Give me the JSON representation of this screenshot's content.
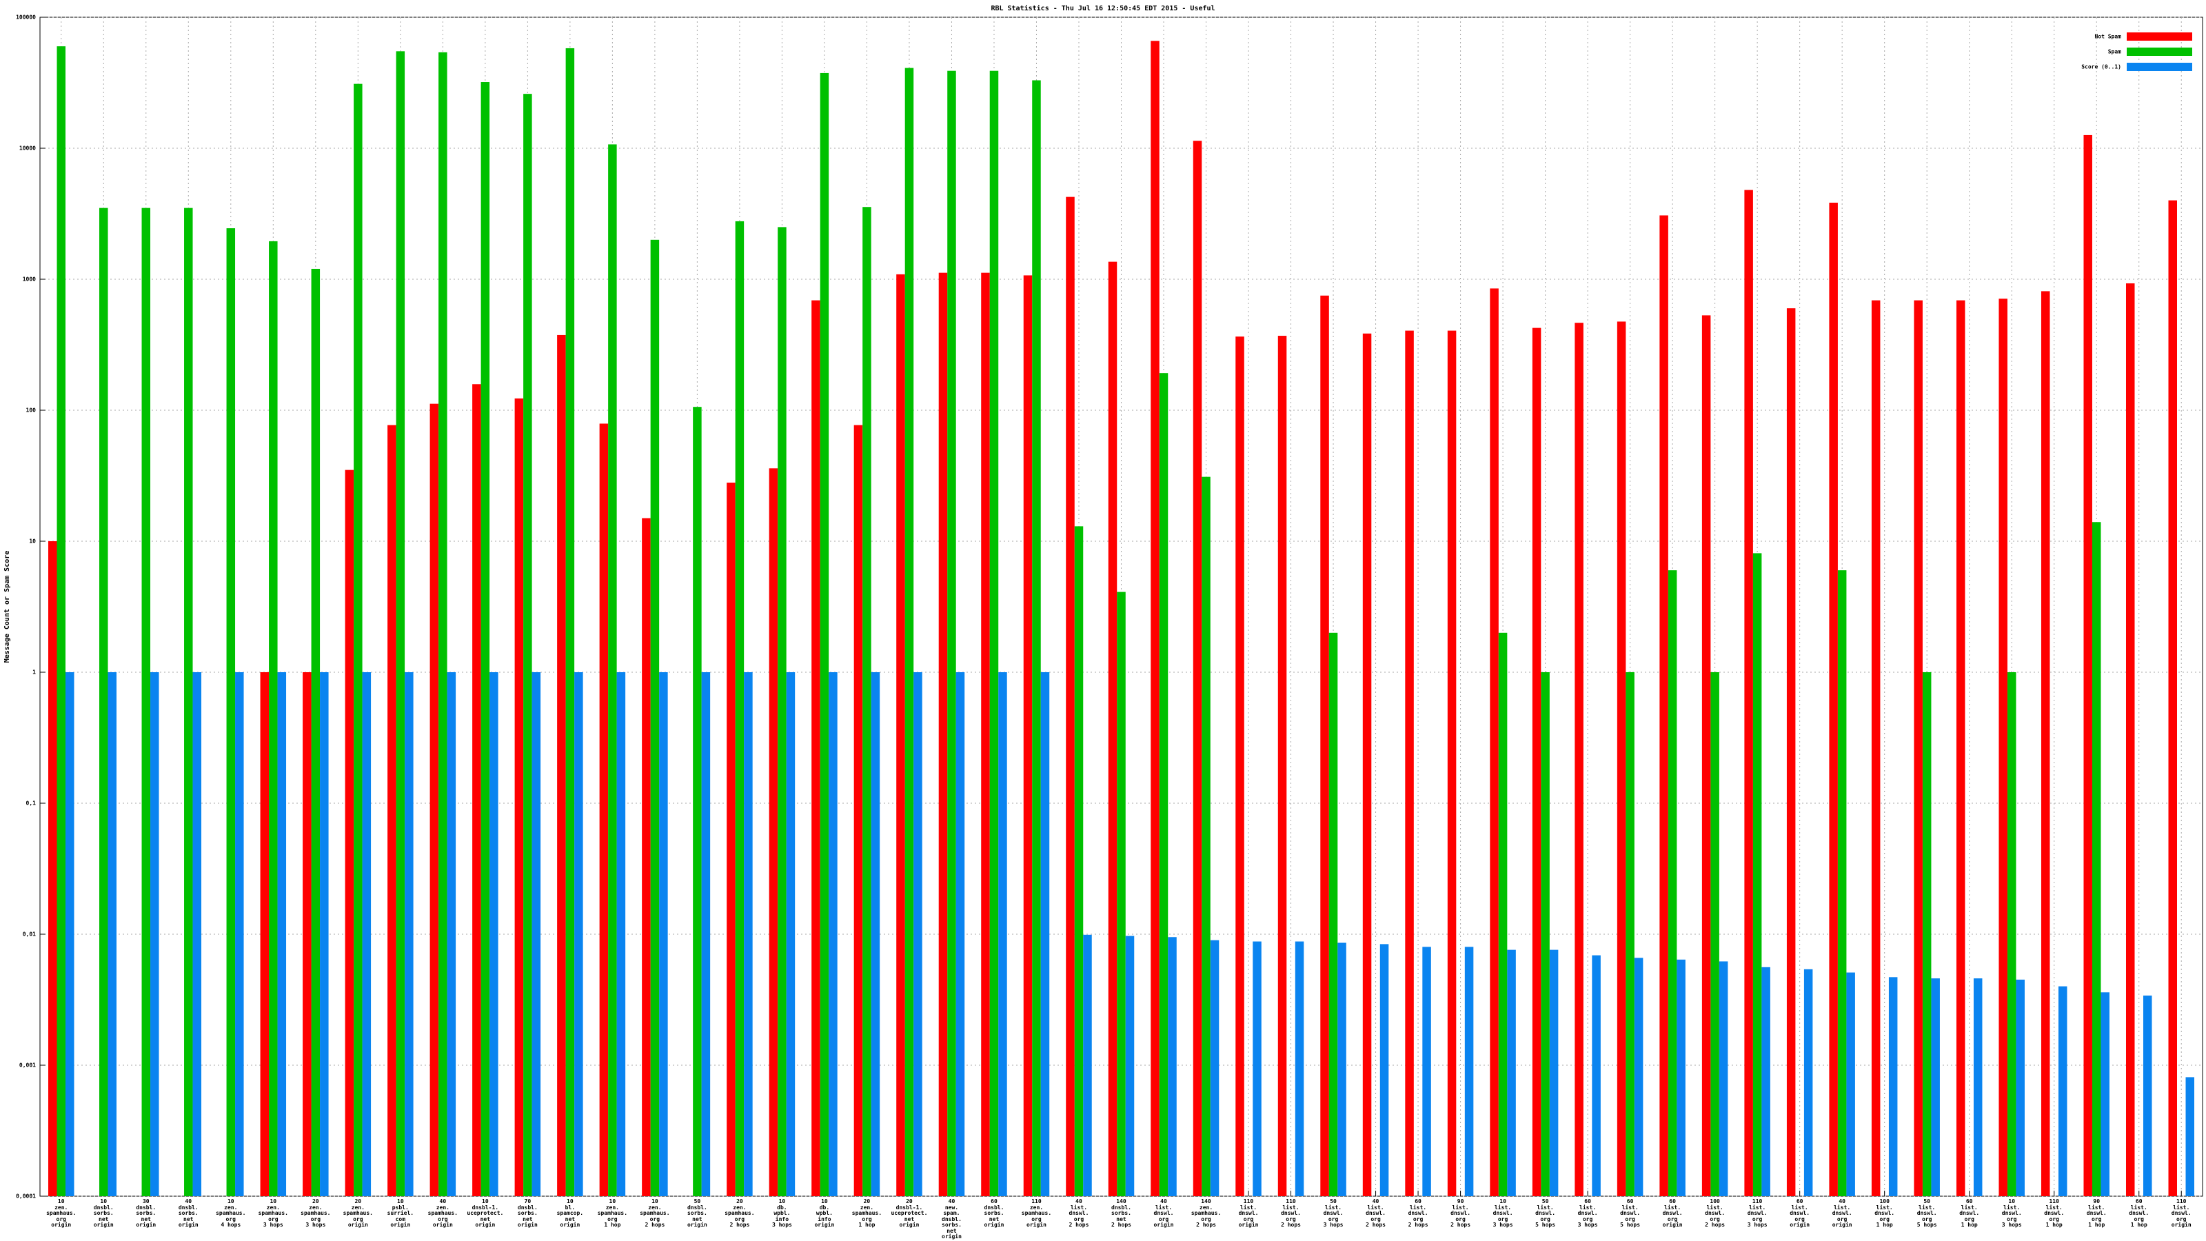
{
  "chart_data": {
    "type": "bar",
    "title": "RBL Statistics - Thu Jul 16 12:50:45 EDT 2015 - Useful",
    "y_label": "Message Count or Spam Score",
    "log_scale": true,
    "grid": true,
    "legend_position": "top-right",
    "ylim": [
      0.0001,
      100000
    ],
    "yticks": [
      {
        "value": 0.0001,
        "label": "0,0001"
      },
      {
        "value": 0.001,
        "label": "0,001"
      },
      {
        "value": 0.01,
        "label": "0,01"
      },
      {
        "value": 0.1,
        "label": "0,1"
      },
      1,
      10,
      100,
      1000,
      10000,
      100000
    ],
    "categories": [
      "10\nzen.\nspamhaus.\norg\norigin",
      "10\ndnsbl.\nsorbs.\nnet\norigin",
      "30\ndnsbl.\nsorbs.\nnet\norigin",
      "40\ndnsbl.\nsorbs.\nnet\norigin",
      "10\nzen.\nspamhaus.\norg\n4 hops",
      "10\nzen.\nspamhaus.\norg\n3 hops",
      "20\nzen.\nspamhaus.\norg\n3 hops",
      "20\nzen.\nspamhaus.\norg\norigin",
      "10\npsbl.\nsurriel.\ncom\norigin",
      "40\nzen.\nspamhaus.\norg\norigin",
      "10\ndnsbl-1.\nuceprotect.\nnet\norigin",
      "70\ndnsbl.\nsorbs.\nnet\norigin",
      "10\nbl.\nspamcop.\nnet\norigin",
      "10\nzen.\nspamhaus.\norg\n1 hop",
      "10\nzen.\nspamhaus.\norg\n2 hops",
      "50\ndnsbl.\nsorbs.\nnet\norigin",
      "20\nzen.\nspamhaus.\norg\n2 hops",
      "10\ndb.\nwpbl.\ninfo\n3 hops",
      "10\ndb.\nwpbl.\ninfo\norigin",
      "20\nzen.\nspamhaus.\norg\n1 hop",
      "20\ndnsbl-1.\nuceprotect.\nnet\norigin",
      "40\nnew.\nspam.\ndnsbl.\nsorbs.\nnet\norigin",
      "60\ndnsbl.\nsorbs.\nnet\norigin",
      "110\nzen.\nspamhaus.\norg\norigin",
      "40\nlist.\ndnswl.\norg\n2 hops",
      "140\ndnsbl.\nsorbs.\nnet\n2 hops",
      "40\nlist.\ndnswl.\norg\norigin",
      "140\nzen.\nspamhaus.\norg\n2 hops",
      "110\nlist.\ndnswl.\norg\norigin",
      "110\nlist.\ndnswl.\norg\n2 hops",
      "50\nlist.\ndnswl.\norg\n3 hops",
      "40\nlist.\ndnswl.\norg\n2 hops",
      "60\nlist.\ndnswl.\norg\n2 hops",
      "90\nlist.\ndnswl.\norg\n2 hops",
      "10\nlist.\ndnswl.\norg\n3 hops",
      "50\nlist.\ndnswl.\norg\n5 hops",
      "60\nlist.\ndnswl.\norg\n3 hops",
      "60\nlist.\ndnswl.\norg\n5 hops",
      "60\nlist.\ndnswl.\norg\norigin",
      "100\nlist.\ndnswl.\norg\n2 hops",
      "110\nlist.\ndnswl.\norg\n3 hops",
      "60\nlist.\ndnswl.\norg\norigin",
      "40\nlist.\ndnswl.\norg\norigin",
      "100\nlist.\ndnswl.\norg\n1 hop",
      "50\nlist.\ndnswl.\norg\n5 hops",
      "60\nlist.\ndnswl.\norg\n1 hop",
      "10\nlist.\ndnswl.\norg\n3 hops",
      "110\nlist.\ndnswl.\norg\n1 hop",
      "90\nlist.\ndnswl.\norg\n1 hop",
      "60\nlist.\ndnswl.\norg\n1 hop",
      "110\nlist.\ndnswl.\norg\norigin"
    ],
    "series": [
      {
        "name": "Not Spam",
        "color": "#ff0000",
        "values": [
          10,
          null,
          null,
          null,
          null,
          1,
          1,
          35,
          77,
          112,
          158,
          123,
          375,
          79,
          15,
          null,
          28,
          36,
          690,
          77,
          1090,
          1120,
          1120,
          1070,
          4250,
          1360,
          66000,
          11400,
          365,
          370,
          750,
          385,
          405,
          405,
          850,
          425,
          465,
          475,
          3070,
          530,
          4800,
          600,
          3840,
          690,
          690,
          690,
          710,
          810,
          12600,
          930,
          4000
        ]
      },
      {
        "name": "Spam",
        "color": "#00c000",
        "values": [
          60000,
          3500,
          3500,
          3500,
          2450,
          1950,
          1200,
          31000,
          55000,
          54000,
          32000,
          26000,
          58000,
          10700,
          2000,
          106,
          2770,
          2500,
          37500,
          3560,
          41000,
          39000,
          39000,
          33000,
          13,
          4.1,
          192,
          31,
          null,
          null,
          2,
          null,
          null,
          null,
          2,
          1,
          null,
          1,
          6,
          1,
          8.1,
          null,
          6,
          null,
          1,
          null,
          1,
          null,
          14,
          null,
          null
        ]
      },
      {
        "name": "Score (0..1)",
        "color": "#0a84f0",
        "values": [
          1,
          1,
          1,
          1,
          1,
          1,
          1,
          1,
          1,
          1,
          1,
          1,
          1,
          1,
          1,
          1,
          1,
          1,
          1,
          1,
          1,
          1,
          1,
          1,
          0.0099,
          0.0097,
          0.0095,
          0.009,
          0.0088,
          0.0088,
          0.0086,
          0.0084,
          0.008,
          0.008,
          0.0076,
          0.0076,
          0.0069,
          0.0066,
          0.0064,
          0.0062,
          0.0056,
          0.0054,
          0.0051,
          0.0047,
          0.0046,
          0.0046,
          0.0045,
          0.004,
          0.0036,
          0.0034,
          0.00081
        ]
      }
    ]
  }
}
